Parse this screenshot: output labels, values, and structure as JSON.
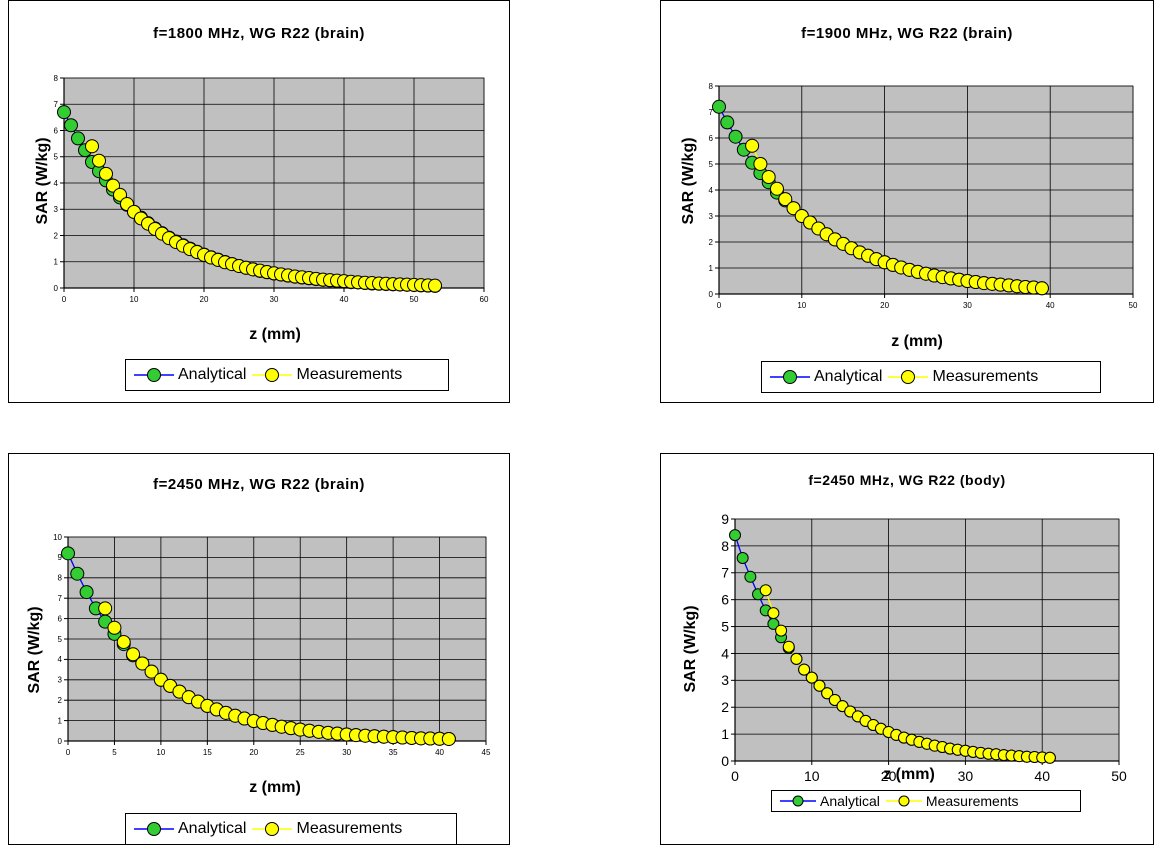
{
  "legend": {
    "analytical": "Analytical",
    "measurements": "Measurements"
  },
  "colors": {
    "plot_bg": "#c0c0c0",
    "line": "#0000ff",
    "analytical_fill": "#33cc33",
    "measurements_fill": "#ffff00",
    "marker_edge": "#000000"
  },
  "chart_data": [
    {
      "type": "line",
      "title": "f=1800 MHz, WG R22 (brain)",
      "xlabel": "z (mm)",
      "ylabel": "SAR (W/kg)",
      "xlim": [
        0,
        60
      ],
      "ylim": [
        0,
        8
      ],
      "xticks": [
        0,
        10,
        20,
        30,
        40,
        50,
        60
      ],
      "yticks": [
        0,
        1,
        2,
        3,
        4,
        5,
        6,
        7,
        8
      ],
      "grid": true,
      "legend_position": "bottom",
      "series": [
        {
          "name": "Analytical",
          "x": [
            0,
            1,
            2,
            3,
            4,
            5,
            6,
            7,
            8,
            9,
            10,
            11,
            12,
            13,
            14,
            15,
            16,
            17,
            18,
            19,
            20,
            21,
            22,
            23,
            24,
            25,
            26,
            27,
            28,
            29,
            30,
            31,
            32,
            33,
            34,
            35,
            36,
            37,
            38,
            39,
            40,
            41,
            42,
            43,
            44,
            45,
            46,
            47,
            48,
            49,
            50,
            51,
            52,
            53
          ],
          "values": [
            6.7,
            6.2,
            5.7,
            5.25,
            4.8,
            4.45,
            4.1,
            3.75,
            3.45,
            3.17,
            2.9,
            2.68,
            2.47,
            2.27,
            2.09,
            1.92,
            1.77,
            1.63,
            1.5,
            1.38,
            1.27,
            1.17,
            1.08,
            0.99,
            0.91,
            0.84,
            0.77,
            0.71,
            0.65,
            0.6,
            0.55,
            0.51,
            0.47,
            0.43,
            0.4,
            0.37,
            0.34,
            0.31,
            0.29,
            0.26,
            0.24,
            0.22,
            0.21,
            0.19,
            0.17,
            0.16,
            0.15,
            0.14,
            0.13,
            0.12,
            0.11,
            0.1,
            0.09,
            0.08
          ]
        },
        {
          "name": "Measurements",
          "x": [
            4,
            5,
            6,
            7,
            8,
            9,
            10,
            11,
            12,
            13,
            14,
            15,
            16,
            17,
            18,
            19,
            20,
            21,
            22,
            23,
            24,
            25,
            26,
            27,
            28,
            29,
            30,
            31,
            32,
            33,
            34,
            35,
            36,
            37,
            38,
            39,
            40,
            41,
            42,
            43,
            44,
            45,
            46,
            47,
            48,
            49,
            50,
            51,
            52,
            53
          ],
          "values": [
            5.4,
            4.85,
            4.35,
            3.9,
            3.55,
            3.2,
            2.9,
            2.65,
            2.45,
            2.25,
            2.07,
            1.9,
            1.75,
            1.61,
            1.48,
            1.37,
            1.26,
            1.16,
            1.07,
            0.98,
            0.91,
            0.84,
            0.77,
            0.71,
            0.66,
            0.61,
            0.56,
            0.52,
            0.48,
            0.44,
            0.41,
            0.38,
            0.35,
            0.32,
            0.3,
            0.28,
            0.26,
            0.24,
            0.22,
            0.2,
            0.19,
            0.17,
            0.16,
            0.15,
            0.14,
            0.13,
            0.12,
            0.11,
            0.1,
            0.09
          ]
        }
      ]
    },
    {
      "type": "line",
      "title": "f=1900 MHz, WG R22 (brain)",
      "xlabel": "z (mm)",
      "ylabel": "SAR (W/kg)",
      "xlim": [
        0,
        50
      ],
      "ylim": [
        0,
        8
      ],
      "xticks": [
        0,
        10,
        20,
        30,
        40,
        50
      ],
      "yticks": [
        0,
        1,
        2,
        3,
        4,
        5,
        6,
        7,
        8
      ],
      "grid": true,
      "legend_position": "bottom",
      "series": [
        {
          "name": "Analytical",
          "x": [
            0,
            1,
            2,
            3,
            4,
            5,
            6,
            7,
            8,
            9,
            10,
            11,
            12,
            13,
            14,
            15,
            16,
            17,
            18,
            19,
            20,
            21,
            22,
            23,
            24,
            25,
            26,
            27,
            28,
            29,
            30,
            31,
            32,
            33,
            34,
            35,
            36,
            37,
            38,
            39
          ],
          "values": [
            7.2,
            6.6,
            6.05,
            5.55,
            5.05,
            4.65,
            4.3,
            3.9,
            3.6,
            3.3,
            3.0,
            2.75,
            2.52,
            2.3,
            2.1,
            1.93,
            1.76,
            1.6,
            1.47,
            1.34,
            1.22,
            1.12,
            1.02,
            0.93,
            0.85,
            0.78,
            0.71,
            0.65,
            0.6,
            0.55,
            0.5,
            0.46,
            0.42,
            0.39,
            0.36,
            0.33,
            0.3,
            0.27,
            0.25,
            0.22
          ]
        },
        {
          "name": "Measurements",
          "x": [
            4,
            5,
            6,
            7,
            8,
            9,
            10,
            11,
            12,
            13,
            14,
            15,
            16,
            17,
            18,
            19,
            20,
            21,
            22,
            23,
            24,
            25,
            26,
            27,
            28,
            29,
            30,
            31,
            32,
            33,
            34,
            35,
            36,
            37,
            38,
            39
          ],
          "values": [
            5.7,
            5.0,
            4.5,
            4.05,
            3.65,
            3.3,
            3.0,
            2.75,
            2.52,
            2.3,
            2.1,
            1.93,
            1.76,
            1.6,
            1.47,
            1.34,
            1.22,
            1.12,
            1.02,
            0.93,
            0.85,
            0.78,
            0.71,
            0.65,
            0.6,
            0.55,
            0.5,
            0.46,
            0.42,
            0.39,
            0.36,
            0.33,
            0.3,
            0.27,
            0.25,
            0.22
          ]
        }
      ]
    },
    {
      "type": "line",
      "title": "f=2450 MHz, WG R22 (brain)",
      "xlabel": "z (mm)",
      "ylabel": "SAR (W/kg)",
      "xlim": [
        0,
        45
      ],
      "ylim": [
        0,
        10
      ],
      "xticks": [
        0,
        5,
        10,
        15,
        20,
        25,
        30,
        35,
        40,
        45
      ],
      "yticks": [
        0,
        1,
        2,
        3,
        4,
        5,
        6,
        7,
        8,
        9,
        10
      ],
      "grid": true,
      "legend_position": "bottom",
      "series": [
        {
          "name": "Analytical",
          "x": [
            0,
            1,
            2,
            3,
            4,
            5,
            6,
            7,
            8,
            9,
            10,
            11,
            12,
            13,
            14,
            15,
            16,
            17,
            18,
            19,
            20,
            21,
            22,
            23,
            24,
            25,
            26,
            27,
            28,
            29,
            30,
            31,
            32,
            33,
            34,
            35,
            36,
            37,
            38,
            39,
            40,
            41
          ],
          "values": [
            9.2,
            8.2,
            7.3,
            6.5,
            5.85,
            5.25,
            4.75,
            4.2,
            3.8,
            3.4,
            3.0,
            2.7,
            2.42,
            2.15,
            1.93,
            1.72,
            1.55,
            1.38,
            1.24,
            1.1,
            0.98,
            0.88,
            0.79,
            0.7,
            0.63,
            0.56,
            0.5,
            0.45,
            0.4,
            0.36,
            0.32,
            0.29,
            0.26,
            0.23,
            0.21,
            0.19,
            0.17,
            0.15,
            0.13,
            0.12,
            0.11,
            0.1
          ]
        },
        {
          "name": "Measurements",
          "x": [
            4,
            5,
            6,
            7,
            8,
            9,
            10,
            11,
            12,
            13,
            14,
            15,
            16,
            17,
            18,
            19,
            20,
            21,
            22,
            23,
            24,
            25,
            26,
            27,
            28,
            29,
            30,
            31,
            32,
            33,
            34,
            35,
            36,
            37,
            38,
            39,
            40,
            41
          ],
          "values": [
            6.5,
            5.55,
            4.85,
            4.25,
            3.8,
            3.4,
            3.0,
            2.7,
            2.42,
            2.15,
            1.93,
            1.72,
            1.55,
            1.38,
            1.24,
            1.1,
            0.98,
            0.88,
            0.79,
            0.7,
            0.63,
            0.56,
            0.5,
            0.45,
            0.4,
            0.36,
            0.32,
            0.29,
            0.26,
            0.23,
            0.21,
            0.19,
            0.17,
            0.15,
            0.13,
            0.12,
            0.11,
            0.1
          ]
        }
      ]
    },
    {
      "type": "line",
      "title": "f=2450 MHz, WG R22 (body)",
      "xlabel": "z (mm)",
      "ylabel": "SAR (W/kg)",
      "xlim": [
        0,
        50
      ],
      "ylim": [
        0,
        9
      ],
      "xticks": [
        0,
        10,
        20,
        30,
        40,
        50
      ],
      "yticks": [
        0,
        1,
        2,
        3,
        4,
        5,
        6,
        7,
        8,
        9
      ],
      "grid": true,
      "legend_position": "bottom",
      "series": [
        {
          "name": "Analytical",
          "x": [
            0,
            1,
            2,
            3,
            4,
            5,
            6,
            7,
            8,
            9,
            10,
            11,
            12,
            13,
            14,
            15,
            16,
            17,
            18,
            19,
            20,
            21,
            22,
            23,
            24,
            25,
            26,
            27,
            28,
            29,
            30,
            31,
            32,
            33,
            34,
            35,
            36,
            37,
            38,
            39,
            40,
            41
          ],
          "values": [
            8.4,
            7.55,
            6.85,
            6.2,
            5.6,
            5.1,
            4.6,
            4.2,
            3.8,
            3.4,
            3.1,
            2.8,
            2.52,
            2.27,
            2.04,
            1.84,
            1.66,
            1.49,
            1.34,
            1.2,
            1.08,
            0.97,
            0.87,
            0.79,
            0.71,
            0.64,
            0.57,
            0.52,
            0.46,
            0.42,
            0.38,
            0.34,
            0.3,
            0.27,
            0.25,
            0.22,
            0.2,
            0.18,
            0.16,
            0.15,
            0.13,
            0.12
          ]
        },
        {
          "name": "Measurements",
          "x": [
            4,
            5,
            6,
            7,
            8,
            9,
            10,
            11,
            12,
            13,
            14,
            15,
            16,
            17,
            18,
            19,
            20,
            21,
            22,
            23,
            24,
            25,
            26,
            27,
            28,
            29,
            30,
            31,
            32,
            33,
            34,
            35,
            36,
            37,
            38,
            39,
            40,
            41
          ],
          "values": [
            6.35,
            5.5,
            4.85,
            4.25,
            3.8,
            3.4,
            3.1,
            2.8,
            2.52,
            2.27,
            2.04,
            1.84,
            1.66,
            1.49,
            1.34,
            1.2,
            1.08,
            0.97,
            0.87,
            0.79,
            0.71,
            0.64,
            0.57,
            0.52,
            0.46,
            0.42,
            0.38,
            0.34,
            0.3,
            0.27,
            0.25,
            0.22,
            0.2,
            0.18,
            0.16,
            0.15,
            0.13,
            0.12
          ]
        }
      ]
    }
  ]
}
